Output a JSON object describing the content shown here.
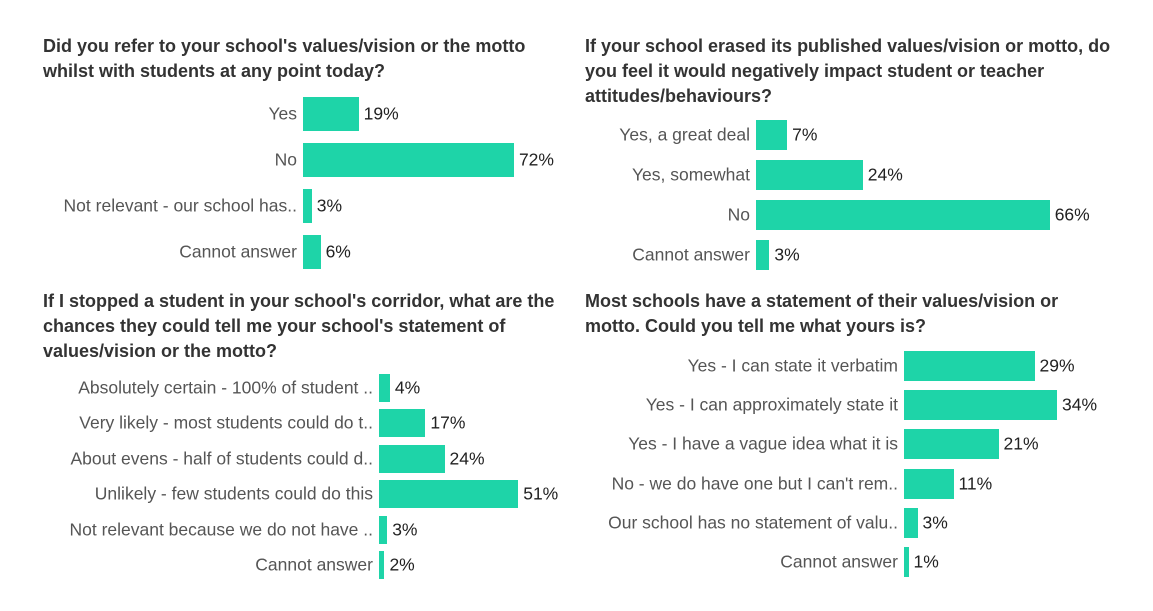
{
  "chart_data": [
    {
      "type": "bar",
      "orientation": "horizontal",
      "title": "Did you refer to your school's values/vision or the motto whilst with students at any point today?",
      "categories": [
        "Yes",
        "No",
        "Not relevant - our school has..",
        "Cannot answer"
      ],
      "values": [
        19,
        72,
        3,
        6
      ],
      "value_labels": [
        "19%",
        "72%",
        "3%",
        "6%"
      ],
      "color": "#1ed4a8"
    },
    {
      "type": "bar",
      "orientation": "horizontal",
      "title": "If your school erased its published values/vision or motto, do you feel it would negatively impact  student or teacher attitudes/behaviours?",
      "categories": [
        "Yes, a great deal",
        "Yes, somewhat",
        "No",
        "Cannot answer"
      ],
      "values": [
        7,
        24,
        66,
        3
      ],
      "value_labels": [
        "7%",
        "24%",
        "66%",
        "3%"
      ],
      "color": "#1ed4a8"
    },
    {
      "type": "bar",
      "orientation": "horizontal",
      "title": "If I stopped a student in your school's corridor, what are the chances they could tell me your school's statement of values/vision or the motto?",
      "categories": [
        "Absolutely certain - 100% of student ..",
        "Very likely - most students could do t..",
        "About evens - half of students could d..",
        "Unlikely - few students could do this",
        "Not relevant because we do not have ..",
        "Cannot answer"
      ],
      "values": [
        4,
        17,
        24,
        51,
        3,
        2
      ],
      "value_labels": [
        "4%",
        "17%",
        "24%",
        "51%",
        "3%",
        "2%"
      ],
      "color": "#1ed4a8"
    },
    {
      "type": "bar",
      "orientation": "horizontal",
      "title": "Most schools have a statement of their values/vision or motto. Could you tell me what yours is?",
      "categories": [
        "Yes - I can state it verbatim",
        "Yes - I can approximately state it",
        "Yes - I have a vague idea what it is",
        "No - we do have one but I can't rem..",
        "Our school has no statement of valu..",
        "Cannot answer"
      ],
      "values": [
        29,
        34,
        21,
        11,
        3,
        1
      ],
      "value_labels": [
        "29%",
        "34%",
        "21%",
        "11%",
        "3%",
        "1%"
      ],
      "color": "#1ed4a8"
    }
  ]
}
